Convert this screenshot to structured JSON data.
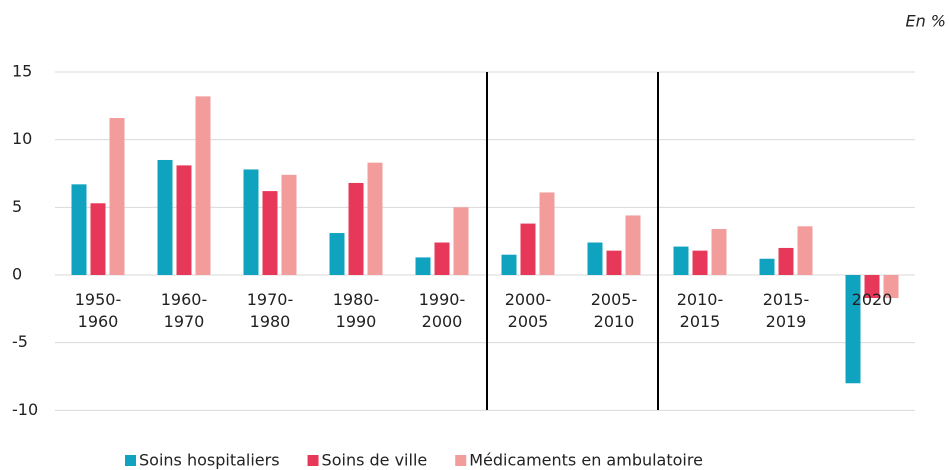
{
  "chart_data": {
    "type": "bar",
    "annotation": "En %",
    "categories": [
      "1950-1960",
      "1960-1970",
      "1970-1980",
      "1980-1990",
      "1990-2000",
      "2000-2005",
      "2005-2010",
      "2010-2015",
      "2015-2019",
      "2020"
    ],
    "series": [
      {
        "name": "Soins hospitaliers",
        "color": "#10a3c0",
        "values": [
          6.7,
          8.5,
          7.8,
          3.1,
          1.3,
          1.5,
          2.4,
          2.1,
          1.2,
          -8.0
        ]
      },
      {
        "name": "Soins de ville",
        "color": "#e8385a",
        "values": [
          5.3,
          8.1,
          6.2,
          6.8,
          2.4,
          3.8,
          1.8,
          1.8,
          2.0,
          -1.7
        ]
      },
      {
        "name": "Médicaments en ambulatoire",
        "color": "#f39c9c",
        "values": [
          11.6,
          13.2,
          7.4,
          8.3,
          5.0,
          6.1,
          4.4,
          3.4,
          3.6,
          -1.7
        ]
      }
    ],
    "ylim": [
      -12.5,
      15
    ],
    "yticks": [
      -10,
      -5,
      0,
      5,
      10,
      15
    ],
    "grid": true,
    "legend": "bottom"
  }
}
